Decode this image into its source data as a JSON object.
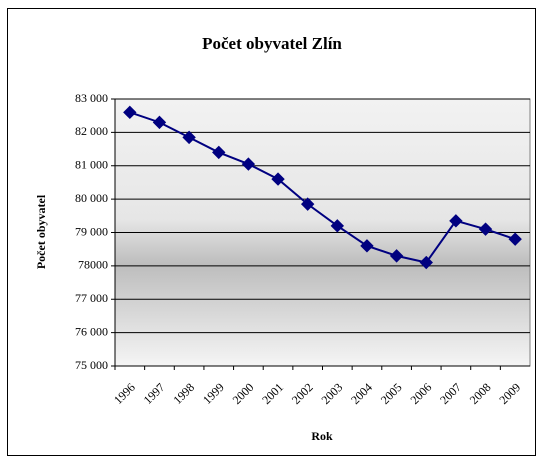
{
  "chart_data": {
    "type": "line",
    "title": "Počet obyvatel Zlín",
    "x_label": "Rok",
    "y_label": "Počet obyvatel",
    "categories": [
      "1996",
      "1997",
      "1998",
      "1999",
      "2000",
      "2001",
      "2002",
      "2003",
      "2004",
      "2005",
      "2006",
      "2007",
      "2008",
      "2009"
    ],
    "series": [
      {
        "name": "Počet obyvatel",
        "color": "#000080",
        "values": [
          82600,
          82300,
          81850,
          81400,
          81050,
          80600,
          79850,
          79200,
          78600,
          78300,
          78100,
          79350,
          79100,
          78800
        ]
      }
    ],
    "ylim": [
      75000,
      83000
    ],
    "yticks": [
      {
        "value": 75000,
        "label": "75 000"
      },
      {
        "value": 76000,
        "label": "76 000"
      },
      {
        "value": 77000,
        "label": "77 000"
      },
      {
        "value": 78000,
        "label": "78000"
      },
      {
        "value": 79000,
        "label": "79 000"
      },
      {
        "value": 80000,
        "label": "80 000"
      },
      {
        "value": 81000,
        "label": "81 000"
      },
      {
        "value": 82000,
        "label": "82 000"
      },
      {
        "value": 83000,
        "label": "83 000"
      }
    ],
    "grid": true
  }
}
